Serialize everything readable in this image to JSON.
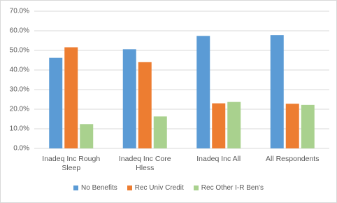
{
  "chart_data": {
    "type": "bar",
    "categories": [
      "Inadeq Inc Rough Sleep",
      "Inadeq Inc Core Hless",
      "Inadeq Inc All",
      "All Respondents"
    ],
    "series": [
      {
        "name": "No Benefits",
        "color": "#5b9bd5",
        "values": [
          46.2,
          50.6,
          57.4,
          57.8
        ]
      },
      {
        "name": "Rec Univ Credit",
        "color": "#ed7d31",
        "values": [
          51.6,
          44.0,
          23.0,
          22.8
        ]
      },
      {
        "name": "Rec Other I-R Ben's",
        "color": "#a9d18e",
        "values": [
          12.4,
          16.3,
          23.7,
          22.2
        ]
      }
    ],
    "ylim": [
      0,
      70
    ],
    "yticks": [
      {
        "value": 0,
        "label": "0.0%"
      },
      {
        "value": 10,
        "label": "10.0%"
      },
      {
        "value": 20,
        "label": "20.0%"
      },
      {
        "value": 30,
        "label": "30.0%"
      },
      {
        "value": 40,
        "label": "40.0%"
      },
      {
        "value": 50,
        "label": "50.0%"
      },
      {
        "value": 60,
        "label": "60.0%"
      },
      {
        "value": 70,
        "label": "70.0%"
      }
    ],
    "grid": true,
    "legend": "bottom"
  }
}
